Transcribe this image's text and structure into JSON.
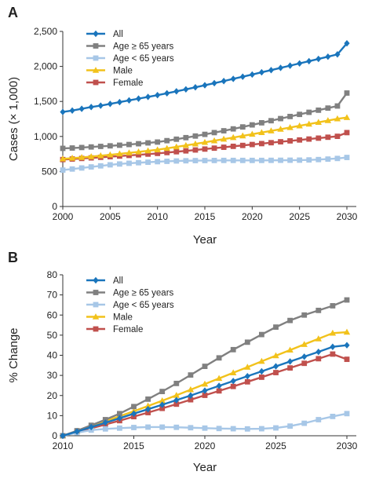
{
  "colors": {
    "All": "#1a75bc",
    "Age ≥ 65 years": "#808080",
    "Age < 65 years": "#a7c7e7",
    "Male": "#f2c21b",
    "Female": "#c0504d",
    "axis": "#333333",
    "text": "#222222"
  },
  "chart_data": [
    {
      "panel": "A",
      "type": "line",
      "xlabel": "Year",
      "ylabel": "Cases (× 1,000)",
      "xlim": [
        2000,
        2030
      ],
      "ylim": [
        0,
        2500
      ],
      "xticks": [
        2000,
        2005,
        2010,
        2015,
        2020,
        2025,
        2030
      ],
      "yticks": [
        0,
        500,
        1000,
        1500,
        2000,
        2500
      ],
      "ytick_labels": [
        "0",
        "500",
        "1,000",
        "1,500",
        "2,000",
        "2,500"
      ],
      "legend_position": "top-left",
      "x_start": 2000,
      "x_step": 1,
      "series": [
        {
          "name": "All",
          "marker": "diamond",
          "values": [
            1350,
            1370,
            1395,
            1420,
            1440,
            1465,
            1490,
            1515,
            1540,
            1565,
            1590,
            1617,
            1645,
            1673,
            1702,
            1731,
            1761,
            1791,
            1822,
            1853,
            1884,
            1916,
            1947,
            1979,
            2011,
            2043,
            2075,
            2107,
            2139,
            2172,
            2330
          ]
        },
        {
          "name": "Age ≥ 65 years",
          "marker": "square",
          "values": [
            830,
            835,
            842,
            850,
            858,
            866,
            875,
            885,
            896,
            908,
            920,
            940,
            961,
            983,
            1006,
            1030,
            1055,
            1081,
            1108,
            1136,
            1165,
            1195,
            1225,
            1255,
            1285,
            1315,
            1345,
            1375,
            1405,
            1435,
            1620
          ]
        },
        {
          "name": "Age < 65 years",
          "marker": "square",
          "values": [
            520,
            535,
            550,
            565,
            580,
            595,
            607,
            617,
            625,
            632,
            640,
            645,
            650,
            653,
            655,
            656,
            657,
            658,
            658,
            658,
            658,
            658,
            659,
            660,
            661,
            662,
            665,
            670,
            677,
            686,
            700
          ]
        },
        {
          "name": "Male",
          "marker": "triangle",
          "values": [
            680,
            690,
            700,
            712,
            725,
            738,
            752,
            766,
            780,
            795,
            810,
            830,
            851,
            872,
            894,
            916,
            939,
            962,
            985,
            1008,
            1032,
            1056,
            1080,
            1104,
            1128,
            1152,
            1177,
            1202,
            1227,
            1252,
            1270
          ]
        },
        {
          "name": "Female",
          "marker": "square",
          "values": [
            670,
            678,
            686,
            694,
            702,
            711,
            720,
            729,
            738,
            748,
            758,
            770,
            782,
            794,
            807,
            820,
            833,
            846,
            859,
            872,
            885,
            898,
            911,
            924,
            937,
            950,
            963,
            976,
            989,
            1002,
            1055
          ]
        }
      ]
    },
    {
      "panel": "B",
      "type": "line",
      "xlabel": "Year",
      "ylabel": "% Change",
      "xlim": [
        2010,
        2030
      ],
      "ylim": [
        0,
        80
      ],
      "xticks": [
        2010,
        2015,
        2020,
        2025,
        2030
      ],
      "yticks": [
        0,
        10,
        20,
        30,
        40,
        50,
        60,
        70,
        80
      ],
      "ytick_labels": [
        "0",
        "10",
        "20",
        "30",
        "40",
        "50",
        "60",
        "70",
        "80"
      ],
      "legend_position": "top-left",
      "x_start": 2010,
      "x_step": 1,
      "series": [
        {
          "name": "All",
          "marker": "diamond",
          "values": [
            0,
            2.1,
            4.3,
            6.5,
            8.7,
            11.0,
            13.2,
            15.4,
            17.7,
            20.0,
            22.4,
            24.8,
            27.2,
            29.6,
            32.0,
            34.5,
            36.9,
            39.3,
            41.7,
            44.2,
            45.0
          ]
        },
        {
          "name": "Age ≥ 65 years",
          "marker": "square",
          "values": [
            0,
            2.5,
            5.2,
            8.0,
            11.0,
            14.5,
            18.2,
            22.0,
            26.0,
            30.2,
            34.5,
            38.7,
            42.8,
            46.5,
            50.3,
            54.0,
            57.3,
            60.0,
            62.3,
            64.6,
            67.5
          ]
        },
        {
          "name": "Age < 65 years",
          "marker": "square",
          "values": [
            0,
            1.5,
            2.8,
            3.4,
            3.8,
            4.1,
            4.3,
            4.3,
            4.2,
            4.0,
            3.8,
            3.6,
            3.5,
            3.4,
            3.5,
            3.9,
            4.8,
            6.2,
            8.0,
            9.6,
            11.0
          ]
        },
        {
          "name": "Male",
          "marker": "triangle",
          "values": [
            0,
            2.3,
            4.7,
            7.2,
            9.7,
            12.2,
            14.8,
            17.4,
            20.1,
            22.9,
            25.7,
            28.5,
            31.3,
            34.1,
            37.0,
            39.8,
            42.6,
            45.4,
            48.2,
            51.0,
            51.5
          ]
        },
        {
          "name": "Female",
          "marker": "square",
          "values": [
            0,
            1.8,
            3.7,
            5.6,
            7.5,
            9.5,
            11.5,
            13.6,
            15.7,
            17.9,
            20.1,
            22.3,
            24.5,
            26.8,
            29.1,
            31.4,
            33.7,
            36.0,
            38.3,
            40.6,
            38.0
          ]
        }
      ]
    }
  ]
}
